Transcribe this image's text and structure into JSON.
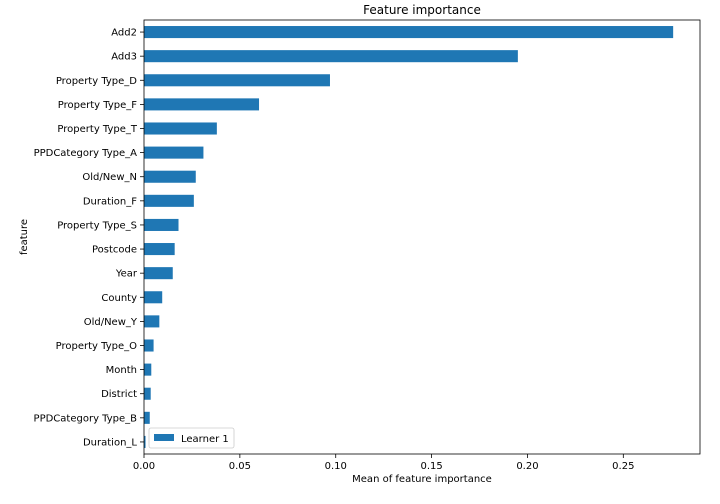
{
  "chart_data": {
    "type": "bar",
    "orientation": "horizontal",
    "title": "Feature importance",
    "xlabel": "Mean of feature importance",
    "ylabel": "feature",
    "xlim": [
      0,
      0.29
    ],
    "xticks": [
      0.0,
      0.05,
      0.1,
      0.15,
      0.2,
      0.25
    ],
    "xtick_labels": [
      "0.00",
      "0.05",
      "0.10",
      "0.15",
      "0.20",
      "0.25"
    ],
    "grid": false,
    "legend_position": "lower-left",
    "bar_color": "#1f77b4",
    "categories": [
      "Add2",
      "Add3",
      "Property Type_D",
      "Property Type_F",
      "Property Type_T",
      "PPDCategory Type_A",
      "Old/New_N",
      "Duration_F",
      "Property Type_S",
      "Postcode",
      "Year",
      "County",
      "Old/New_Y",
      "Property Type_O",
      "Month",
      "District",
      "PPDCategory Type_B",
      "Duration_L"
    ],
    "series": [
      {
        "name": "Learner 1",
        "values": [
          0.276,
          0.195,
          0.097,
          0.06,
          0.038,
          0.031,
          0.027,
          0.026,
          0.018,
          0.016,
          0.015,
          0.0095,
          0.008,
          0.005,
          0.0038,
          0.0035,
          0.003,
          0.0008
        ]
      }
    ]
  }
}
